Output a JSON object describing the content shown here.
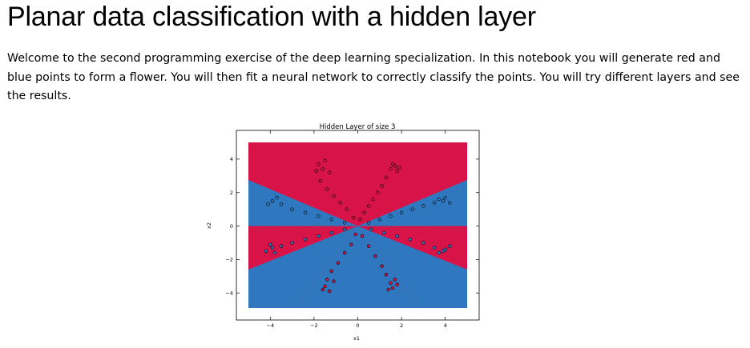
{
  "notebook": {
    "title": "Planar data classification with a hidden layer",
    "intro": "Welcome to the second programming exercise of the deep learning specialization. In this notebook you will generate red and blue points to form a flower. You will then fit a neural network to correctly classify the points. You will try different layers and see the results."
  },
  "chart_data": {
    "type": "scatter",
    "title": "Hidden Layer of size 3",
    "xlabel": "x1",
    "ylabel": "x2",
    "xlim": [
      -5,
      5
    ],
    "ylim": [
      -4.9,
      5.0
    ],
    "xticks": [
      -4,
      -2,
      0,
      2,
      4
    ],
    "yticks": [
      4,
      2,
      0,
      -2,
      -4
    ],
    "grid": false,
    "colors": {
      "red_region": "#d81347",
      "blue_region": "#2f78bf",
      "point_edge": "#000000"
    },
    "decision_boundary": {
      "description_regions": [
        "red",
        "blue"
      ],
      "lines_through_origin_slopes": [
        1.0,
        -1.0
      ],
      "horizontal_line_y": 0.0
    },
    "series": [
      {
        "color": "#d81347",
        "points": [
          [
            0.1,
            0.4
          ],
          [
            0.3,
            0.8
          ],
          [
            0.5,
            1.2
          ],
          [
            0.7,
            1.6
          ],
          [
            0.9,
            2.0
          ],
          [
            1.1,
            2.4
          ],
          [
            1.3,
            2.9
          ],
          [
            1.5,
            3.4
          ],
          [
            1.6,
            3.7
          ],
          [
            1.7,
            3.6
          ],
          [
            1.8,
            3.3
          ],
          [
            1.9,
            3.5
          ],
          [
            -0.2,
            0.5
          ],
          [
            -0.5,
            1.0
          ],
          [
            -0.8,
            1.4
          ],
          [
            -1.1,
            1.8
          ],
          [
            -1.4,
            2.2
          ],
          [
            -1.7,
            2.7
          ],
          [
            -1.9,
            3.3
          ],
          [
            -1.8,
            3.7
          ],
          [
            -1.6,
            3.4
          ],
          [
            -1.5,
            3.9
          ],
          [
            -1.3,
            3.2
          ],
          [
            -0.1,
            -0.5
          ],
          [
            -0.3,
            -1.1
          ],
          [
            -0.6,
            -1.6
          ],
          [
            -0.9,
            -2.2
          ],
          [
            -1.2,
            -2.7
          ],
          [
            -1.4,
            -3.2
          ],
          [
            -1.5,
            -3.6
          ],
          [
            -1.3,
            -3.9
          ],
          [
            -1.6,
            -3.8
          ],
          [
            -1.1,
            -3.3
          ],
          [
            0.2,
            -0.6
          ],
          [
            0.5,
            -1.2
          ],
          [
            0.8,
            -1.8
          ],
          [
            1.1,
            -2.4
          ],
          [
            1.3,
            -2.9
          ],
          [
            1.5,
            -3.4
          ],
          [
            1.6,
            -3.7
          ],
          [
            1.8,
            -3.5
          ],
          [
            1.4,
            -3.8
          ],
          [
            1.7,
            -3.2
          ]
        ]
      },
      {
        "color": "#2f78bf",
        "points": [
          [
            0.5,
            0.2
          ],
          [
            1.0,
            0.4
          ],
          [
            1.5,
            0.6
          ],
          [
            2.0,
            0.8
          ],
          [
            2.5,
            1.0
          ],
          [
            3.0,
            1.2
          ],
          [
            3.5,
            1.4
          ],
          [
            3.9,
            1.5
          ],
          [
            4.2,
            1.4
          ],
          [
            4.0,
            1.7
          ],
          [
            3.7,
            1.6
          ],
          [
            -0.6,
            0.2
          ],
          [
            -1.2,
            0.4
          ],
          [
            -1.8,
            0.6
          ],
          [
            -2.4,
            0.8
          ],
          [
            -3.0,
            1.0
          ],
          [
            -3.5,
            1.3
          ],
          [
            -3.9,
            1.5
          ],
          [
            -4.1,
            1.3
          ],
          [
            -3.7,
            1.7
          ],
          [
            -0.6,
            -0.2
          ],
          [
            -1.2,
            -0.4
          ],
          [
            -1.8,
            -0.6
          ],
          [
            -2.4,
            -0.8
          ],
          [
            -3.0,
            -1.0
          ],
          [
            -3.5,
            -1.2
          ],
          [
            -3.9,
            -1.3
          ],
          [
            -4.2,
            -1.5
          ],
          [
            -3.8,
            -1.6
          ],
          [
            -4.0,
            -1.1
          ],
          [
            0.6,
            -0.2
          ],
          [
            1.2,
            -0.4
          ],
          [
            1.8,
            -0.6
          ],
          [
            2.4,
            -0.8
          ],
          [
            3.0,
            -1.0
          ],
          [
            3.5,
            -1.3
          ],
          [
            3.9,
            -1.5
          ],
          [
            4.2,
            -1.2
          ],
          [
            3.7,
            -1.6
          ],
          [
            4.0,
            -1.4
          ]
        ]
      }
    ]
  }
}
